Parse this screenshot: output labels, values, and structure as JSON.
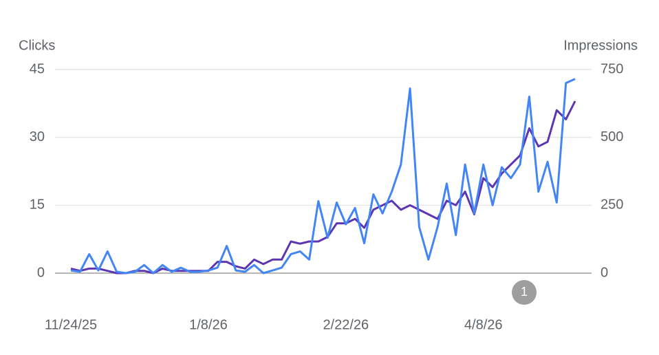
{
  "chart_data": {
    "type": "line",
    "categories": [
      "11/24/25",
      null,
      null,
      null,
      null,
      null,
      null,
      null,
      null,
      null,
      null,
      null,
      null,
      null,
      null,
      "1/8/26",
      null,
      null,
      null,
      null,
      null,
      null,
      null,
      null,
      null,
      null,
      null,
      null,
      null,
      null,
      "2/22/26",
      null,
      null,
      null,
      null,
      null,
      null,
      null,
      null,
      null,
      null,
      null,
      null,
      null,
      null,
      "4/8/26",
      null,
      null,
      null,
      null,
      null,
      null,
      null,
      null,
      null,
      null
    ],
    "series": [
      {
        "name": "Clicks",
        "color": "#5e35b1",
        "values": [
          1,
          0.5,
          1,
          1,
          0.5,
          0,
          0,
          0.5,
          0.5,
          0,
          1,
          0.5,
          0.5,
          0.5,
          0.5,
          0.5,
          2.5,
          2.5,
          1.5,
          1,
          3,
          2,
          3,
          3,
          7,
          6.5,
          7,
          7,
          8,
          11,
          11,
          12,
          10,
          14,
          15,
          16,
          14,
          15,
          14,
          13,
          12,
          16,
          15,
          18,
          13,
          21,
          19,
          22,
          24,
          26,
          32,
          28,
          29,
          36,
          34,
          38
        ]
      },
      {
        "name": "Impressions",
        "color": "#4285f4",
        "axis": "y2",
        "values": [
          10,
          5,
          70,
          10,
          80,
          5,
          0,
          5,
          30,
          0,
          30,
          5,
          20,
          5,
          5,
          10,
          20,
          100,
          10,
          5,
          30,
          0,
          10,
          20,
          70,
          80,
          50,
          265,
          130,
          260,
          180,
          240,
          110,
          290,
          220,
          300,
          400,
          680,
          170,
          50,
          170,
          330,
          140,
          400,
          220,
          400,
          250,
          390,
          350,
          400,
          650,
          300,
          410,
          260,
          700,
          715
        ]
      }
    ],
    "ylim": [
      0,
      45
    ],
    "yticks": [
      0,
      15,
      30,
      45
    ],
    "y2lim": [
      0,
      750
    ],
    "y2ticks": [
      0,
      250,
      500,
      750
    ],
    "grid": true,
    "annotation": "1"
  }
}
